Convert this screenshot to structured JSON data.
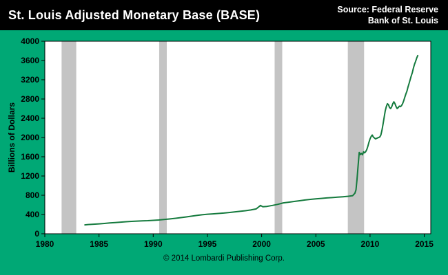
{
  "header": {
    "title": "St. Louis Adjusted Monetary Base (BASE)",
    "source_line1": "Source: Federal Reserve",
    "source_line2": "Bank of St. Louis"
  },
  "footer": {
    "copyright": "© 2014 Lombardi Publishing Corp."
  },
  "colors": {
    "background": "#00a875",
    "header_bg": "#000000",
    "header_text": "#ffffff",
    "plot_bg": "#ffffff",
    "plot_border": "#000000",
    "line": "#147a3d",
    "recession_band": "#c4c4c4",
    "axis_text": "#000000"
  },
  "chart_data": {
    "type": "line",
    "title": "St. Louis Adjusted Monetary Base (BASE)",
    "ylabel": "Billions of Dollars",
    "xlim": [
      1980,
      2015.6
    ],
    "ylim": [
      0,
      4000
    ],
    "x_ticks": [
      1980,
      1985,
      1990,
      1995,
      2000,
      2005,
      2010,
      2015
    ],
    "y_ticks": [
      0,
      400,
      800,
      1200,
      1600,
      2000,
      2400,
      2800,
      3200,
      3600,
      4000
    ],
    "grid": false,
    "legend": false,
    "recession_bands": [
      [
        1981.55,
        1982.9
      ],
      [
        1990.55,
        1991.25
      ],
      [
        2001.2,
        2001.9
      ],
      [
        2007.95,
        2009.45
      ]
    ],
    "series": [
      {
        "name": "St. Louis Adjusted Monetary Base",
        "points": [
          [
            1983.7,
            185
          ],
          [
            1984,
            192
          ],
          [
            1984.5,
            198
          ],
          [
            1985,
            206
          ],
          [
            1985.5,
            214
          ],
          [
            1986,
            224
          ],
          [
            1986.5,
            233
          ],
          [
            1987,
            242
          ],
          [
            1987.5,
            250
          ],
          [
            1988,
            257
          ],
          [
            1988.5,
            263
          ],
          [
            1989,
            268
          ],
          [
            1989.5,
            272
          ],
          [
            1990,
            278
          ],
          [
            1990.5,
            286
          ],
          [
            1991,
            296
          ],
          [
            1991.5,
            307
          ],
          [
            1992,
            320
          ],
          [
            1992.5,
            334
          ],
          [
            1993,
            349
          ],
          [
            1993.5,
            364
          ],
          [
            1994,
            380
          ],
          [
            1994.5,
            395
          ],
          [
            1995,
            406
          ],
          [
            1995.5,
            413
          ],
          [
            1996,
            421
          ],
          [
            1996.5,
            430
          ],
          [
            1997,
            441
          ],
          [
            1997.5,
            453
          ],
          [
            1998,
            466
          ],
          [
            1998.5,
            479
          ],
          [
            1999,
            494
          ],
          [
            1999.5,
            516
          ],
          [
            1999.9,
            588
          ],
          [
            2000.1,
            562
          ],
          [
            2000.5,
            568
          ],
          [
            2001,
            588
          ],
          [
            2001.5,
            612
          ],
          [
            2002,
            642
          ],
          [
            2002.5,
            656
          ],
          [
            2003,
            672
          ],
          [
            2003.5,
            686
          ],
          [
            2004,
            702
          ],
          [
            2004.5,
            714
          ],
          [
            2005,
            724
          ],
          [
            2005.5,
            734
          ],
          [
            2006,
            744
          ],
          [
            2006.5,
            752
          ],
          [
            2007,
            760
          ],
          [
            2007.5,
            768
          ],
          [
            2008,
            778
          ],
          [
            2008.4,
            792
          ],
          [
            2008.6,
            842
          ],
          [
            2008.7,
            910
          ],
          [
            2008.8,
            1130
          ],
          [
            2008.9,
            1420
          ],
          [
            2009,
            1690
          ],
          [
            2009.1,
            1645
          ],
          [
            2009.2,
            1672
          ],
          [
            2009.3,
            1642
          ],
          [
            2009.4,
            1702
          ],
          [
            2009.5,
            1682
          ],
          [
            2009.6,
            1705
          ],
          [
            2009.7,
            1752
          ],
          [
            2009.8,
            1822
          ],
          [
            2009.9,
            1902
          ],
          [
            2010,
            1972
          ],
          [
            2010.1,
            2022
          ],
          [
            2010.2,
            2052
          ],
          [
            2010.3,
            2012
          ],
          [
            2010.4,
            1992
          ],
          [
            2010.5,
            1972
          ],
          [
            2010.6,
            1982
          ],
          [
            2010.7,
            1992
          ],
          [
            2010.8,
            2002
          ],
          [
            2010.9,
            2012
          ],
          [
            2011,
            2052
          ],
          [
            2011.1,
            2152
          ],
          [
            2011.2,
            2282
          ],
          [
            2011.3,
            2422
          ],
          [
            2011.4,
            2552
          ],
          [
            2011.5,
            2642
          ],
          [
            2011.6,
            2702
          ],
          [
            2011.7,
            2682
          ],
          [
            2011.8,
            2622
          ],
          [
            2011.9,
            2602
          ],
          [
            2012,
            2642
          ],
          [
            2012.1,
            2702
          ],
          [
            2012.2,
            2742
          ],
          [
            2012.3,
            2702
          ],
          [
            2012.4,
            2642
          ],
          [
            2012.5,
            2602
          ],
          [
            2012.6,
            2622
          ],
          [
            2012.7,
            2652
          ],
          [
            2012.8,
            2642
          ],
          [
            2012.9,
            2662
          ],
          [
            2013,
            2702
          ],
          [
            2013.1,
            2762
          ],
          [
            2013.2,
            2832
          ],
          [
            2013.3,
            2902
          ],
          [
            2013.4,
            2962
          ],
          [
            2013.5,
            3052
          ],
          [
            2013.6,
            3122
          ],
          [
            2013.7,
            3202
          ],
          [
            2013.8,
            3282
          ],
          [
            2013.9,
            3352
          ],
          [
            2014,
            3442
          ],
          [
            2014.1,
            3522
          ],
          [
            2014.2,
            3582
          ],
          [
            2014.3,
            3652
          ],
          [
            2014.4,
            3702
          ]
        ]
      }
    ]
  }
}
